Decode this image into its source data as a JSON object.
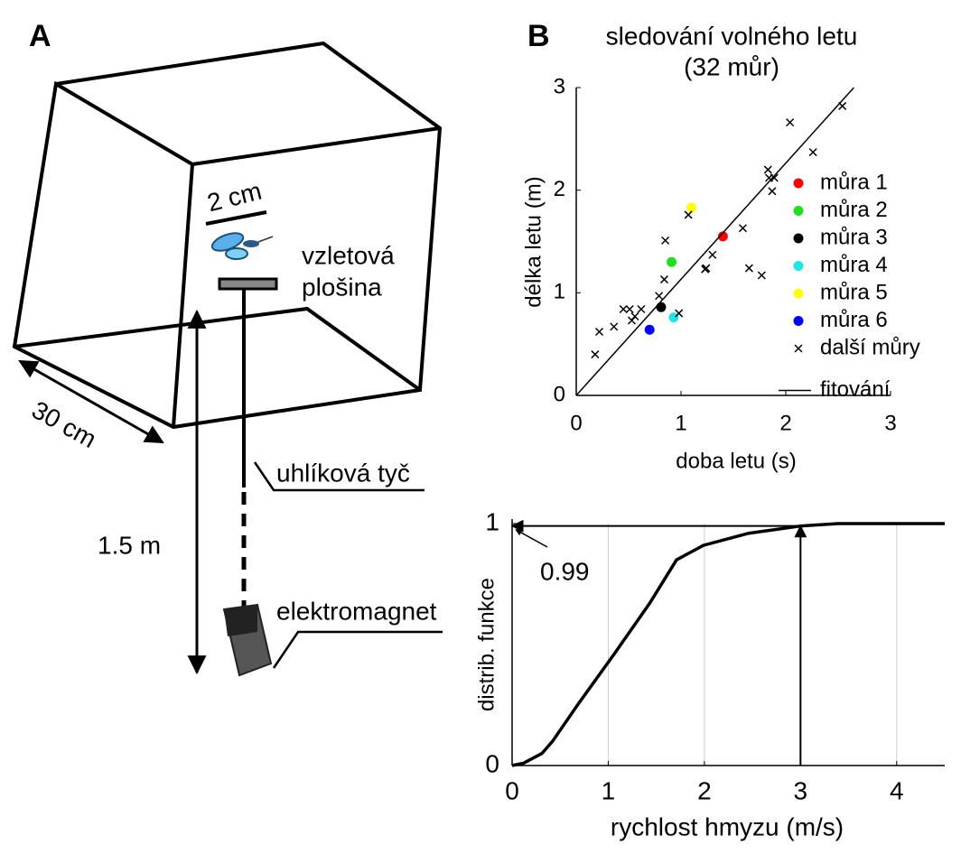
{
  "panels": {
    "a": "A",
    "b": "B"
  },
  "diagram": {
    "scale_label": "2 cm",
    "platform": [
      "vzletová",
      "plošina"
    ],
    "box_size": "30 cm",
    "rod": "uhlíková tyč",
    "height": "1.5 m",
    "magnet": "elektromagnet"
  },
  "chart_data": [
    {
      "type": "scatter",
      "title": "sledování volného letu",
      "subtitle": "(32 můr)",
      "x_label": "doba letu (s)",
      "y_label": "délka letu (m)",
      "xlim": [
        0,
        3
      ],
      "ylim": [
        0,
        3
      ],
      "xticks": [
        0,
        1,
        2,
        3
      ],
      "yticks": [
        0,
        1,
        2,
        3
      ],
      "legend": "right",
      "series": [
        {
          "name": "můra 1",
          "color": "#ff0000",
          "marker": "dot",
          "x": [
            1.4
          ],
          "y": [
            1.55
          ]
        },
        {
          "name": "můra 2",
          "color": "#22dd22",
          "marker": "dot",
          "x": [
            0.91
          ],
          "y": [
            1.3
          ]
        },
        {
          "name": "můra 3",
          "color": "#000000",
          "marker": "dot",
          "x": [
            0.81
          ],
          "y": [
            0.86
          ]
        },
        {
          "name": "můra 4",
          "color": "#22e5e5",
          "marker": "dot",
          "x": [
            0.93
          ],
          "y": [
            0.76
          ]
        },
        {
          "name": "můra 5",
          "color": "#ffff00",
          "marker": "dot",
          "x": [
            1.1
          ],
          "y": [
            1.83
          ]
        },
        {
          "name": "můra 6",
          "color": "#0000ff",
          "marker": "dot",
          "x": [
            0.7
          ],
          "y": [
            0.64
          ]
        },
        {
          "name": "další můry",
          "color": "#000000",
          "marker": "x",
          "x": [
            0.18,
            0.22,
            0.36,
            0.45,
            0.51,
            0.53,
            0.56,
            0.62,
            0.79,
            0.84,
            0.85,
            0.98,
            1.07,
            1.24,
            1.23,
            1.3,
            1.59,
            1.65,
            1.77,
            1.83,
            1.84,
            1.87,
            1.89,
            2.04,
            2.26,
            2.54
          ],
          "y": [
            0.4,
            0.62,
            0.67,
            0.84,
            0.84,
            0.73,
            0.77,
            0.84,
            0.97,
            1.13,
            1.51,
            0.8,
            1.76,
            1.24,
            1.23,
            1.37,
            1.63,
            1.24,
            1.17,
            2.2,
            2.12,
            1.99,
            2.12,
            2.66,
            2.37,
            2.82
          ]
        },
        {
          "name": "fitování",
          "color": "#000000",
          "marker": "line",
          "x": [
            0,
            2.65
          ],
          "y": [
            0,
            3
          ]
        }
      ]
    },
    {
      "type": "line",
      "x_label": "rychlost hmyzu (m/s)",
      "y_label": "distrib. funkce",
      "xlim": [
        0,
        4.5
      ],
      "ylim": [
        0,
        1
      ],
      "xticks": [
        0,
        1,
        2,
        3,
        4
      ],
      "yticks": [
        0,
        1
      ],
      "grid_x": true,
      "series": [
        {
          "color": "#000000",
          "x": [
            0,
            0.12,
            0.31,
            0.42,
            0.68,
            1.06,
            1.43,
            1.71,
            1.99,
            2.46,
            3.0,
            3.39,
            4.5
          ],
          "y": [
            0,
            0.01,
            0.05,
            0.1,
            0.25,
            0.46,
            0.67,
            0.85,
            0.91,
            0.96,
            0.99,
            1.0,
            1.0
          ]
        }
      ],
      "annotation": {
        "x": 3,
        "y": 0.99
      }
    }
  ]
}
